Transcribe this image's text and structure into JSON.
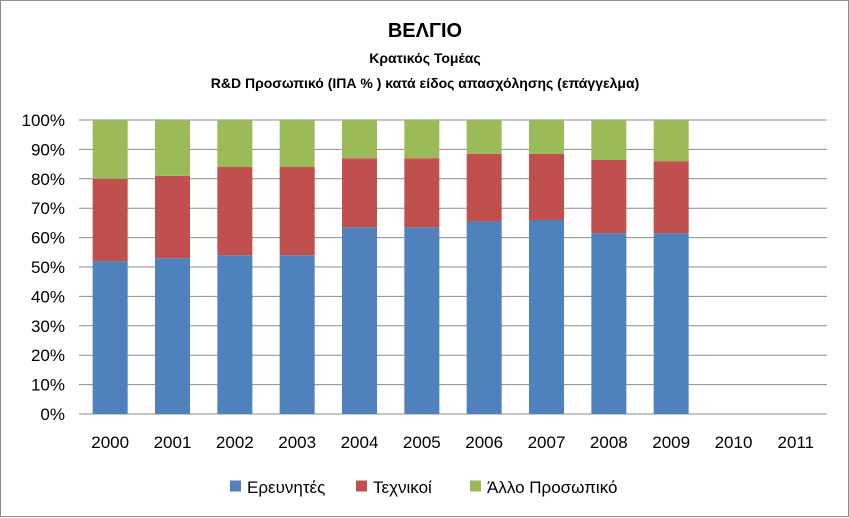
{
  "chart_data": {
    "type": "bar",
    "stacked": true,
    "percent": true,
    "title": "ΒΕΛΓΙΟ",
    "subtitle": "Κρατικός Τομέας",
    "subtitle2": "R&D  Προσωπικό (ΙΠΑ % ) κατά είδος απασχόλησης (επάγγελμα)",
    "categories": [
      "2000",
      "2001",
      "2002",
      "2003",
      "2004",
      "2005",
      "2006",
      "2007",
      "2008",
      "2009",
      "2010",
      "2011"
    ],
    "series": [
      {
        "name": "Ερευνητές",
        "color": "#4F81BD",
        "values": [
          52,
          53,
          54,
          54,
          63.5,
          63.5,
          65.5,
          66,
          61.5,
          61.5,
          null,
          null
        ]
      },
      {
        "name": "Τεχνικοί",
        "color": "#C0504D",
        "values": [
          28,
          28,
          30,
          30,
          23.5,
          23.5,
          23,
          22.5,
          25,
          24.5,
          null,
          null
        ]
      },
      {
        "name": "Άλλο Προσωπικό",
        "color": "#9BBB59",
        "values": [
          20,
          19,
          16,
          16,
          13,
          13,
          11.5,
          11.5,
          13.5,
          14,
          null,
          null
        ]
      }
    ],
    "ylim": [
      0,
      100
    ],
    "yticks": [
      "0%",
      "10%",
      "20%",
      "30%",
      "40%",
      "50%",
      "60%",
      "70%",
      "80%",
      "90%",
      "100%"
    ],
    "grid": true,
    "legend_position": "bottom"
  }
}
